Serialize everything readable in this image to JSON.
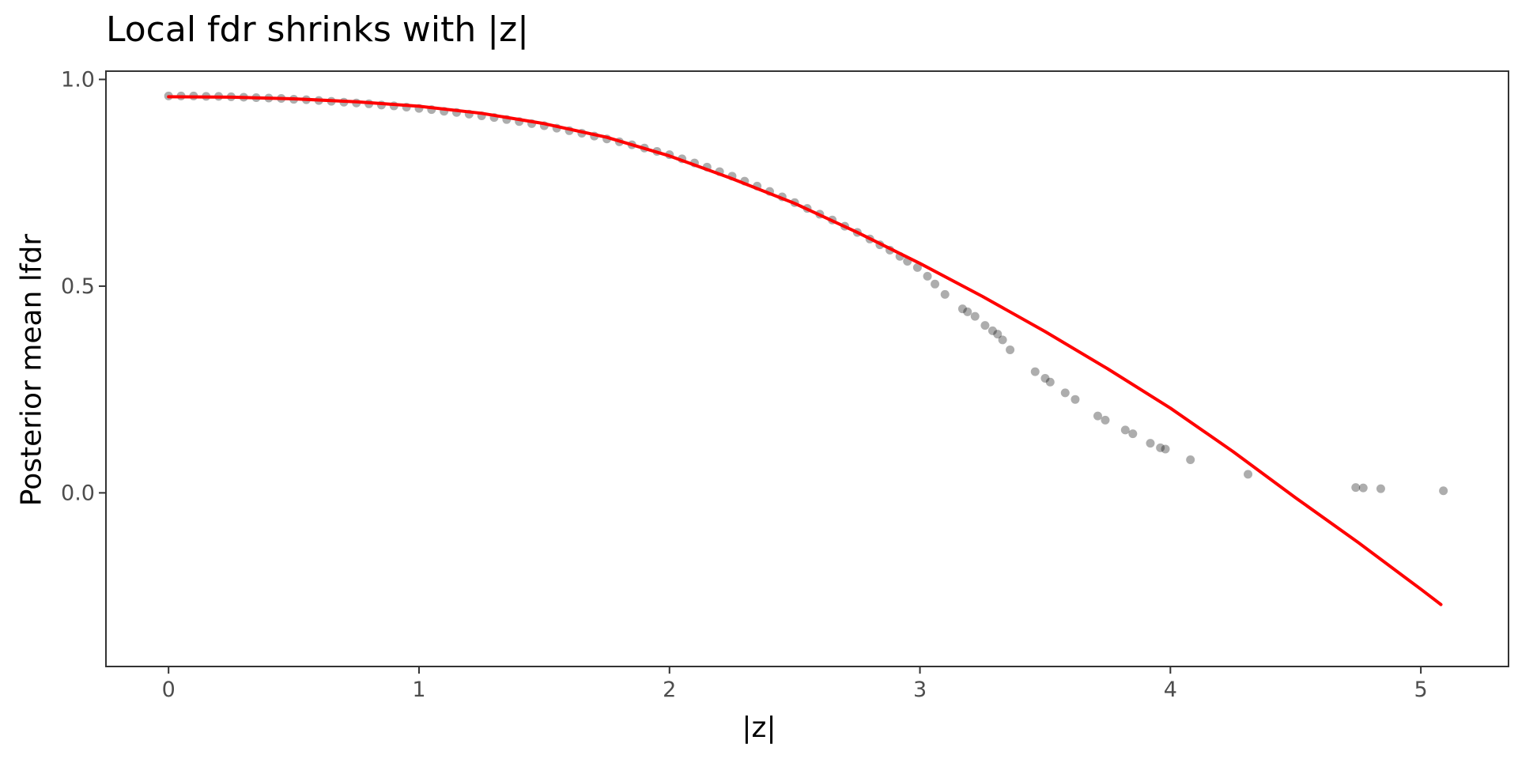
{
  "chart_data": {
    "type": "scatter",
    "title": "Local fdr shrinks with |z|",
    "xlabel": "|z|",
    "ylabel": "Posterior mean lfdr",
    "xlim": [
      -0.25,
      5.35
    ],
    "ylim": [
      -0.42,
      1.02
    ],
    "x_ticks": [
      0,
      1,
      2,
      3,
      4,
      5
    ],
    "y_ticks": [
      0.0,
      0.5,
      1.0
    ],
    "x_tick_labels": [
      "0",
      "1",
      "2",
      "3",
      "4",
      "5"
    ],
    "y_tick_labels": [
      "0.0",
      "0.5",
      "1.0"
    ],
    "grid": false,
    "legend": "none",
    "colors": {
      "points": "#000000",
      "curve": "#ff0000",
      "frame": "#333333"
    },
    "series": [
      {
        "kind": "points",
        "opacity": 0.32,
        "points": [
          [
            0.0,
            0.96
          ],
          [
            0.05,
            0.96
          ],
          [
            0.1,
            0.96
          ],
          [
            0.15,
            0.959
          ],
          [
            0.2,
            0.959
          ],
          [
            0.25,
            0.958
          ],
          [
            0.3,
            0.957
          ],
          [
            0.35,
            0.956
          ],
          [
            0.4,
            0.955
          ],
          [
            0.45,
            0.954
          ],
          [
            0.5,
            0.952
          ],
          [
            0.55,
            0.951
          ],
          [
            0.6,
            0.949
          ],
          [
            0.65,
            0.947
          ],
          [
            0.7,
            0.945
          ],
          [
            0.75,
            0.943
          ],
          [
            0.8,
            0.941
          ],
          [
            0.85,
            0.938
          ],
          [
            0.9,
            0.936
          ],
          [
            0.95,
            0.933
          ],
          [
            1.0,
            0.93
          ],
          [
            1.05,
            0.927
          ],
          [
            1.1,
            0.923
          ],
          [
            1.15,
            0.92
          ],
          [
            1.2,
            0.916
          ],
          [
            1.25,
            0.912
          ],
          [
            1.3,
            0.908
          ],
          [
            1.35,
            0.903
          ],
          [
            1.4,
            0.898
          ],
          [
            1.45,
            0.893
          ],
          [
            1.5,
            0.888
          ],
          [
            1.55,
            0.882
          ],
          [
            1.6,
            0.876
          ],
          [
            1.65,
            0.87
          ],
          [
            1.7,
            0.863
          ],
          [
            1.75,
            0.856
          ],
          [
            1.8,
            0.849
          ],
          [
            1.85,
            0.842
          ],
          [
            1.9,
            0.834
          ],
          [
            1.95,
            0.826
          ],
          [
            2.0,
            0.818
          ],
          [
            2.05,
            0.808
          ],
          [
            2.1,
            0.798
          ],
          [
            2.15,
            0.788
          ],
          [
            2.2,
            0.777
          ],
          [
            2.25,
            0.766
          ],
          [
            2.3,
            0.754
          ],
          [
            2.35,
            0.742
          ],
          [
            2.4,
            0.729
          ],
          [
            2.45,
            0.716
          ],
          [
            2.5,
            0.702
          ],
          [
            2.55,
            0.688
          ],
          [
            2.6,
            0.674
          ],
          [
            2.65,
            0.66
          ],
          [
            2.7,
            0.645
          ],
          [
            2.75,
            0.63
          ],
          [
            2.8,
            0.614
          ],
          [
            2.84,
            0.6
          ],
          [
            2.88,
            0.587
          ],
          [
            2.92,
            0.572
          ],
          [
            2.95,
            0.56
          ],
          [
            2.99,
            0.545
          ],
          [
            3.03,
            0.524
          ],
          [
            3.06,
            0.505
          ],
          [
            3.1,
            0.48
          ],
          [
            3.17,
            0.445
          ],
          [
            3.19,
            0.438
          ],
          [
            3.22,
            0.427
          ],
          [
            3.26,
            0.405
          ],
          [
            3.29,
            0.392
          ],
          [
            3.31,
            0.384
          ],
          [
            3.33,
            0.37
          ],
          [
            3.36,
            0.346
          ],
          [
            3.46,
            0.293
          ],
          [
            3.5,
            0.277
          ],
          [
            3.52,
            0.268
          ],
          [
            3.58,
            0.242
          ],
          [
            3.62,
            0.226
          ],
          [
            3.71,
            0.186
          ],
          [
            3.74,
            0.176
          ],
          [
            3.82,
            0.152
          ],
          [
            3.85,
            0.143
          ],
          [
            3.92,
            0.12
          ],
          [
            3.96,
            0.109
          ],
          [
            3.98,
            0.106
          ],
          [
            4.08,
            0.08
          ],
          [
            4.31,
            0.045
          ],
          [
            4.74,
            0.013
          ],
          [
            4.77,
            0.012
          ],
          [
            4.84,
            0.01
          ],
          [
            5.09,
            0.005
          ]
        ]
      },
      {
        "kind": "line",
        "points": [
          [
            0.0,
            0.958
          ],
          [
            0.25,
            0.957
          ],
          [
            0.5,
            0.953
          ],
          [
            0.75,
            0.946
          ],
          [
            1.0,
            0.935
          ],
          [
            1.25,
            0.918
          ],
          [
            1.5,
            0.893
          ],
          [
            1.75,
            0.86
          ],
          [
            2.0,
            0.815
          ],
          [
            2.25,
            0.76
          ],
          [
            2.5,
            0.7
          ],
          [
            2.75,
            0.63
          ],
          [
            3.0,
            0.555
          ],
          [
            3.25,
            0.475
          ],
          [
            3.5,
            0.39
          ],
          [
            3.75,
            0.3
          ],
          [
            4.0,
            0.205
          ],
          [
            4.25,
            0.1
          ],
          [
            4.5,
            -0.012
          ],
          [
            4.75,
            -0.12
          ],
          [
            5.0,
            -0.233
          ],
          [
            5.08,
            -0.27
          ]
        ]
      }
    ]
  }
}
